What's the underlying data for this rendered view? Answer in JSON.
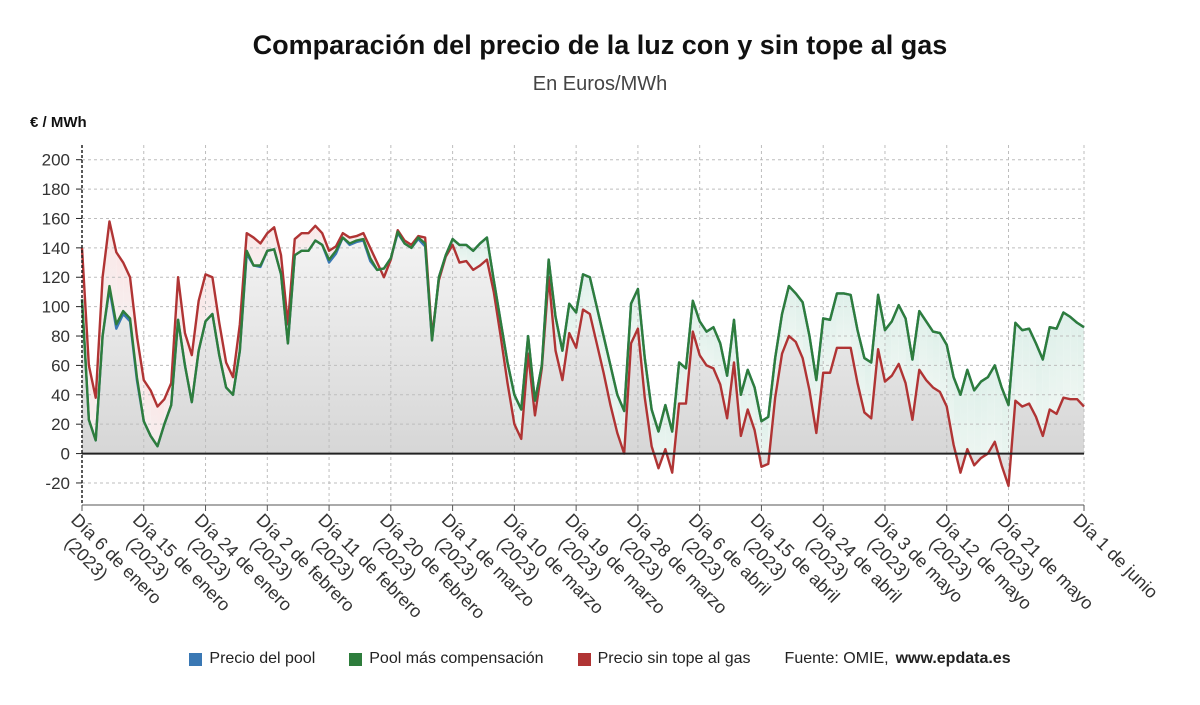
{
  "chart_data": {
    "type": "line",
    "title": "Comparación del precio de la luz con y sin tope al gas",
    "subtitle": "En Euros/MWh",
    "ylabel": "€ / MWh",
    "ylim": [
      -35,
      210
    ],
    "yticks": [
      -20,
      0,
      20,
      40,
      60,
      80,
      100,
      120,
      140,
      160,
      180,
      200
    ],
    "xticks": [
      {
        "label": "Día 6 de enero (2023)",
        "lines": [
          "Día 6 de enero",
          "(2023)"
        ],
        "day": 0
      },
      {
        "label": "Día 15 de enero (2023)",
        "lines": [
          "Día 15 de enero",
          "(2023)"
        ],
        "day": 9
      },
      {
        "label": "Día 24 de enero (2023)",
        "lines": [
          "Día 24 de enero",
          "(2023)"
        ],
        "day": 18
      },
      {
        "label": "Día 2 de febrero (2023)",
        "lines": [
          "Día 2 de febrero",
          "(2023)"
        ],
        "day": 27
      },
      {
        "label": "Día 11 de febrero (2023)",
        "lines": [
          "Día 11 de febrero",
          "(2023)"
        ],
        "day": 36
      },
      {
        "label": "Día 20 de febrero (2023)",
        "lines": [
          "Día 20 de febrero",
          "(2023)"
        ],
        "day": 45
      },
      {
        "label": "Día 1 de marzo (2023)",
        "lines": [
          "Día 1 de marzo",
          "(2023)"
        ],
        "day": 54
      },
      {
        "label": "Día 10 de marzo (2023)",
        "lines": [
          "Día 10 de marzo",
          "(2023)"
        ],
        "day": 63
      },
      {
        "label": "Día 19 de marzo (2023)",
        "lines": [
          "Día 19 de marzo",
          "(2023)"
        ],
        "day": 72
      },
      {
        "label": "Día 28 de marzo (2023)",
        "lines": [
          "Día 28 de marzo",
          "(2023)"
        ],
        "day": 81
      },
      {
        "label": "Día 6 de abril (2023)",
        "lines": [
          "Día 6 de abril",
          "(2023)"
        ],
        "day": 90
      },
      {
        "label": "Día 15 de abril (2023)",
        "lines": [
          "Día 15 de abril",
          "(2023)"
        ],
        "day": 99
      },
      {
        "label": "Día 24 de abril (2023)",
        "lines": [
          "Día 24 de abril",
          "(2023)"
        ],
        "day": 108
      },
      {
        "label": "Día 3 de mayo (2023)",
        "lines": [
          "Día 3 de mayo",
          "(2023)"
        ],
        "day": 117
      },
      {
        "label": "Día 12 de mayo (2023)",
        "lines": [
          "Día 12 de mayo",
          "(2023)"
        ],
        "day": 126
      },
      {
        "label": "Día 21 de mayo (2023)",
        "lines": [
          "Día 21 de mayo",
          "(2023)"
        ],
        "day": 135
      },
      {
        "label": "Día 1 de junio",
        "lines": [
          "Día 1 de junio"
        ],
        "day": 146
      }
    ],
    "series": [
      {
        "name": "Precio del pool",
        "color": "#3a78b4",
        "values": [
          105,
          23,
          9,
          80,
          112,
          85,
          95,
          90,
          50,
          22,
          12,
          5,
          20,
          33,
          91,
          60,
          35,
          70,
          90,
          95,
          67,
          45,
          40,
          70,
          136,
          128,
          127,
          138,
          139,
          122,
          75,
          135,
          138,
          138,
          145,
          142,
          130,
          136,
          147,
          142,
          144,
          145,
          131,
          125,
          126,
          133,
          150,
          143,
          140,
          146,
          141,
          77,
          120,
          135,
          146,
          142,
          142,
          138,
          143,
          147,
          118,
          90,
          62,
          40,
          30,
          80,
          36,
          60,
          132,
          93,
          70,
          102,
          96,
          122,
          120,
          100,
          80,
          60,
          40,
          29,
          102,
          112,
          65,
          30,
          15,
          33,
          15,
          62,
          58,
          104,
          90,
          83,
          86,
          75,
          53,
          91,
          40,
          57,
          45,
          22,
          25,
          65,
          95,
          114,
          109,
          103,
          80,
          50,
          92,
          91,
          109,
          109,
          108,
          84,
          65,
          62,
          108,
          84,
          90,
          101,
          92,
          64,
          97,
          90,
          83,
          82,
          74,
          52,
          40,
          57,
          43,
          49,
          52,
          60,
          45,
          33,
          89,
          84,
          85,
          75,
          64,
          86,
          85,
          96,
          93,
          89,
          86
        ]
      },
      {
        "name": "Pool más compensación",
        "color": "#2e7d3c",
        "values": [
          105,
          23,
          9,
          80,
          114,
          88,
          97,
          92,
          52,
          22,
          12,
          5,
          20,
          33,
          91,
          60,
          35,
          70,
          90,
          95,
          67,
          45,
          40,
          70,
          138,
          128,
          128,
          138,
          139,
          122,
          75,
          135,
          138,
          138,
          145,
          142,
          132,
          138,
          147,
          143,
          145,
          146,
          133,
          125,
          126,
          133,
          151,
          143,
          140,
          147,
          143,
          77,
          120,
          135,
          146,
          142,
          142,
          138,
          143,
          147,
          118,
          90,
          62,
          40,
          30,
          80,
          36,
          60,
          132,
          93,
          70,
          102,
          96,
          122,
          120,
          100,
          80,
          60,
          40,
          29,
          102,
          112,
          65,
          30,
          15,
          33,
          15,
          62,
          58,
          104,
          90,
          83,
          86,
          75,
          53,
          91,
          40,
          57,
          45,
          22,
          25,
          65,
          95,
          114,
          109,
          103,
          80,
          50,
          92,
          91,
          109,
          109,
          108,
          84,
          65,
          62,
          108,
          84,
          90,
          101,
          92,
          64,
          97,
          90,
          83,
          82,
          74,
          52,
          40,
          57,
          43,
          49,
          52,
          60,
          45,
          33,
          89,
          84,
          85,
          75,
          64,
          86,
          85,
          96,
          93,
          89,
          86
        ]
      },
      {
        "name": "Precio sin tope al gas",
        "color": "#b03434",
        "values": [
          140,
          60,
          38,
          120,
          158,
          137,
          130,
          120,
          80,
          50,
          43,
          32,
          37,
          48,
          120,
          82,
          67,
          104,
          122,
          120,
          89,
          62,
          52,
          88,
          150,
          147,
          143,
          150,
          154,
          135,
          88,
          146,
          150,
          150,
          155,
          150,
          138,
          141,
          150,
          147,
          148,
          150,
          140,
          130,
          120,
          132,
          152,
          145,
          142,
          148,
          147,
          80,
          118,
          134,
          142,
          130,
          131,
          125,
          128,
          132,
          110,
          80,
          48,
          20,
          10,
          68,
          26,
          58,
          120,
          70,
          50,
          82,
          72,
          98,
          95,
          75,
          55,
          33,
          14,
          0,
          75,
          85,
          38,
          5,
          -10,
          3,
          -13,
          34,
          34,
          83,
          67,
          60,
          58,
          47,
          24,
          62,
          12,
          30,
          16,
          -9,
          -7,
          38,
          68,
          80,
          76,
          65,
          43,
          14,
          55,
          55,
          72,
          72,
          72,
          48,
          28,
          24,
          71,
          49,
          53,
          61,
          48,
          23,
          57,
          50,
          45,
          42,
          32,
          6,
          -13,
          3,
          -8,
          -3,
          0,
          8,
          -8,
          -22,
          36,
          32,
          34,
          25,
          12,
          30,
          27,
          38,
          37,
          37,
          32
        ]
      }
    ],
    "legend": [
      {
        "label": "Precio del pool",
        "color": "#3a78b4"
      },
      {
        "label": "Pool más compensación",
        "color": "#2e7d3c"
      },
      {
        "label": "Precio sin tope al gas",
        "color": "#b03434"
      }
    ],
    "source_prefix": "Fuente: OMIE, ",
    "source_site": "www.epdata.es"
  }
}
